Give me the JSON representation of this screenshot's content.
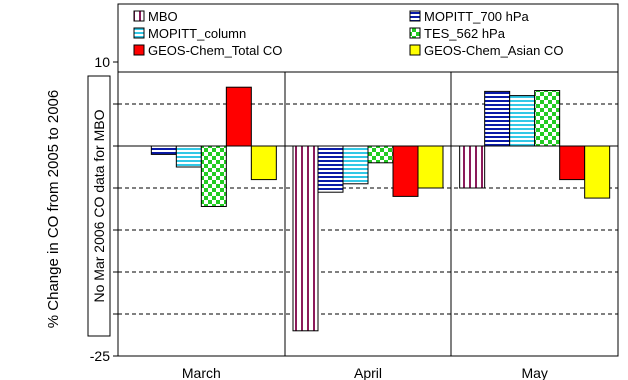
{
  "chart_data": {
    "type": "bar",
    "ylabel": "% Change in CO from 2005 to 2006",
    "ylim": [
      -25,
      10
    ],
    "yticks": [
      -25,
      -20,
      -15,
      -10,
      -5,
      0,
      5,
      10
    ],
    "grid": "dashed horizontal",
    "legend_position": "top",
    "categories": [
      "March",
      "April",
      "May"
    ],
    "series": [
      {
        "name": "MBO",
        "values": [
          null,
          -22,
          -5
        ],
        "pattern": "vertical-lines",
        "color": "#8b1a5a"
      },
      {
        "name": "MOPITT_700 hPa",
        "values": [
          -1,
          -5.5,
          6.5
        ],
        "pattern": "horizontal-lines",
        "color": "#0a1aa8"
      },
      {
        "name": "MOPITT_column",
        "values": [
          -2.5,
          -4.5,
          6
        ],
        "pattern": "horizontal-lines",
        "color": "#33c8e6"
      },
      {
        "name": "TES_562 hPa",
        "values": [
          -7.2,
          -2,
          6.6
        ],
        "pattern": "checker",
        "color": "#22cc22"
      },
      {
        "name": "GEOS-Chem_Total CO",
        "values": [
          7,
          -6,
          -4
        ],
        "pattern": "solid",
        "color": "#ff0000"
      },
      {
        "name": "GEOS-Chem_Asian CO",
        "values": [
          -4,
          -5,
          -6.2
        ],
        "pattern": "solid",
        "color": "#ffff00"
      }
    ],
    "annotations": [
      "No Mar 2006 CO data for MBO"
    ]
  }
}
